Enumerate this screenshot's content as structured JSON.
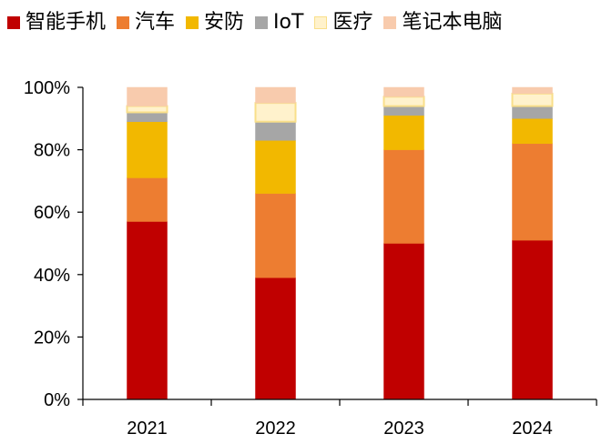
{
  "chart_data": {
    "type": "bar",
    "stacked": true,
    "categories": [
      "2021",
      "2022",
      "2023",
      "2024"
    ],
    "ylim": [
      0,
      100
    ],
    "yticks": [
      "0%",
      "20%",
      "40%",
      "60%",
      "80%",
      "100%"
    ],
    "series": [
      {
        "name": "智能手机",
        "color": "#C00000",
        "border": "#C00000",
        "values": [
          57,
          39,
          50,
          51
        ]
      },
      {
        "name": "汽车",
        "color": "#ED7D31",
        "border": "#ED7D31",
        "values": [
          14,
          27,
          30,
          31
        ]
      },
      {
        "name": "安防",
        "color": "#F2B800",
        "border": "#F2B800",
        "values": [
          18,
          17,
          11,
          8
        ]
      },
      {
        "name": "IoT",
        "color": "#A6A6A6",
        "border": "#A6A6A6",
        "values": [
          3,
          6,
          3,
          4
        ]
      },
      {
        "name": "医疗",
        "color": "#FFF2CC",
        "border": "#F9DF8A",
        "values": [
          2,
          6,
          3,
          4
        ]
      },
      {
        "name": "笔记本电脑",
        "color": "#F8CBAD",
        "border": "#F8CBAD",
        "values": [
          6,
          5,
          3,
          2
        ]
      }
    ],
    "legend_position": "top",
    "grid": false
  }
}
